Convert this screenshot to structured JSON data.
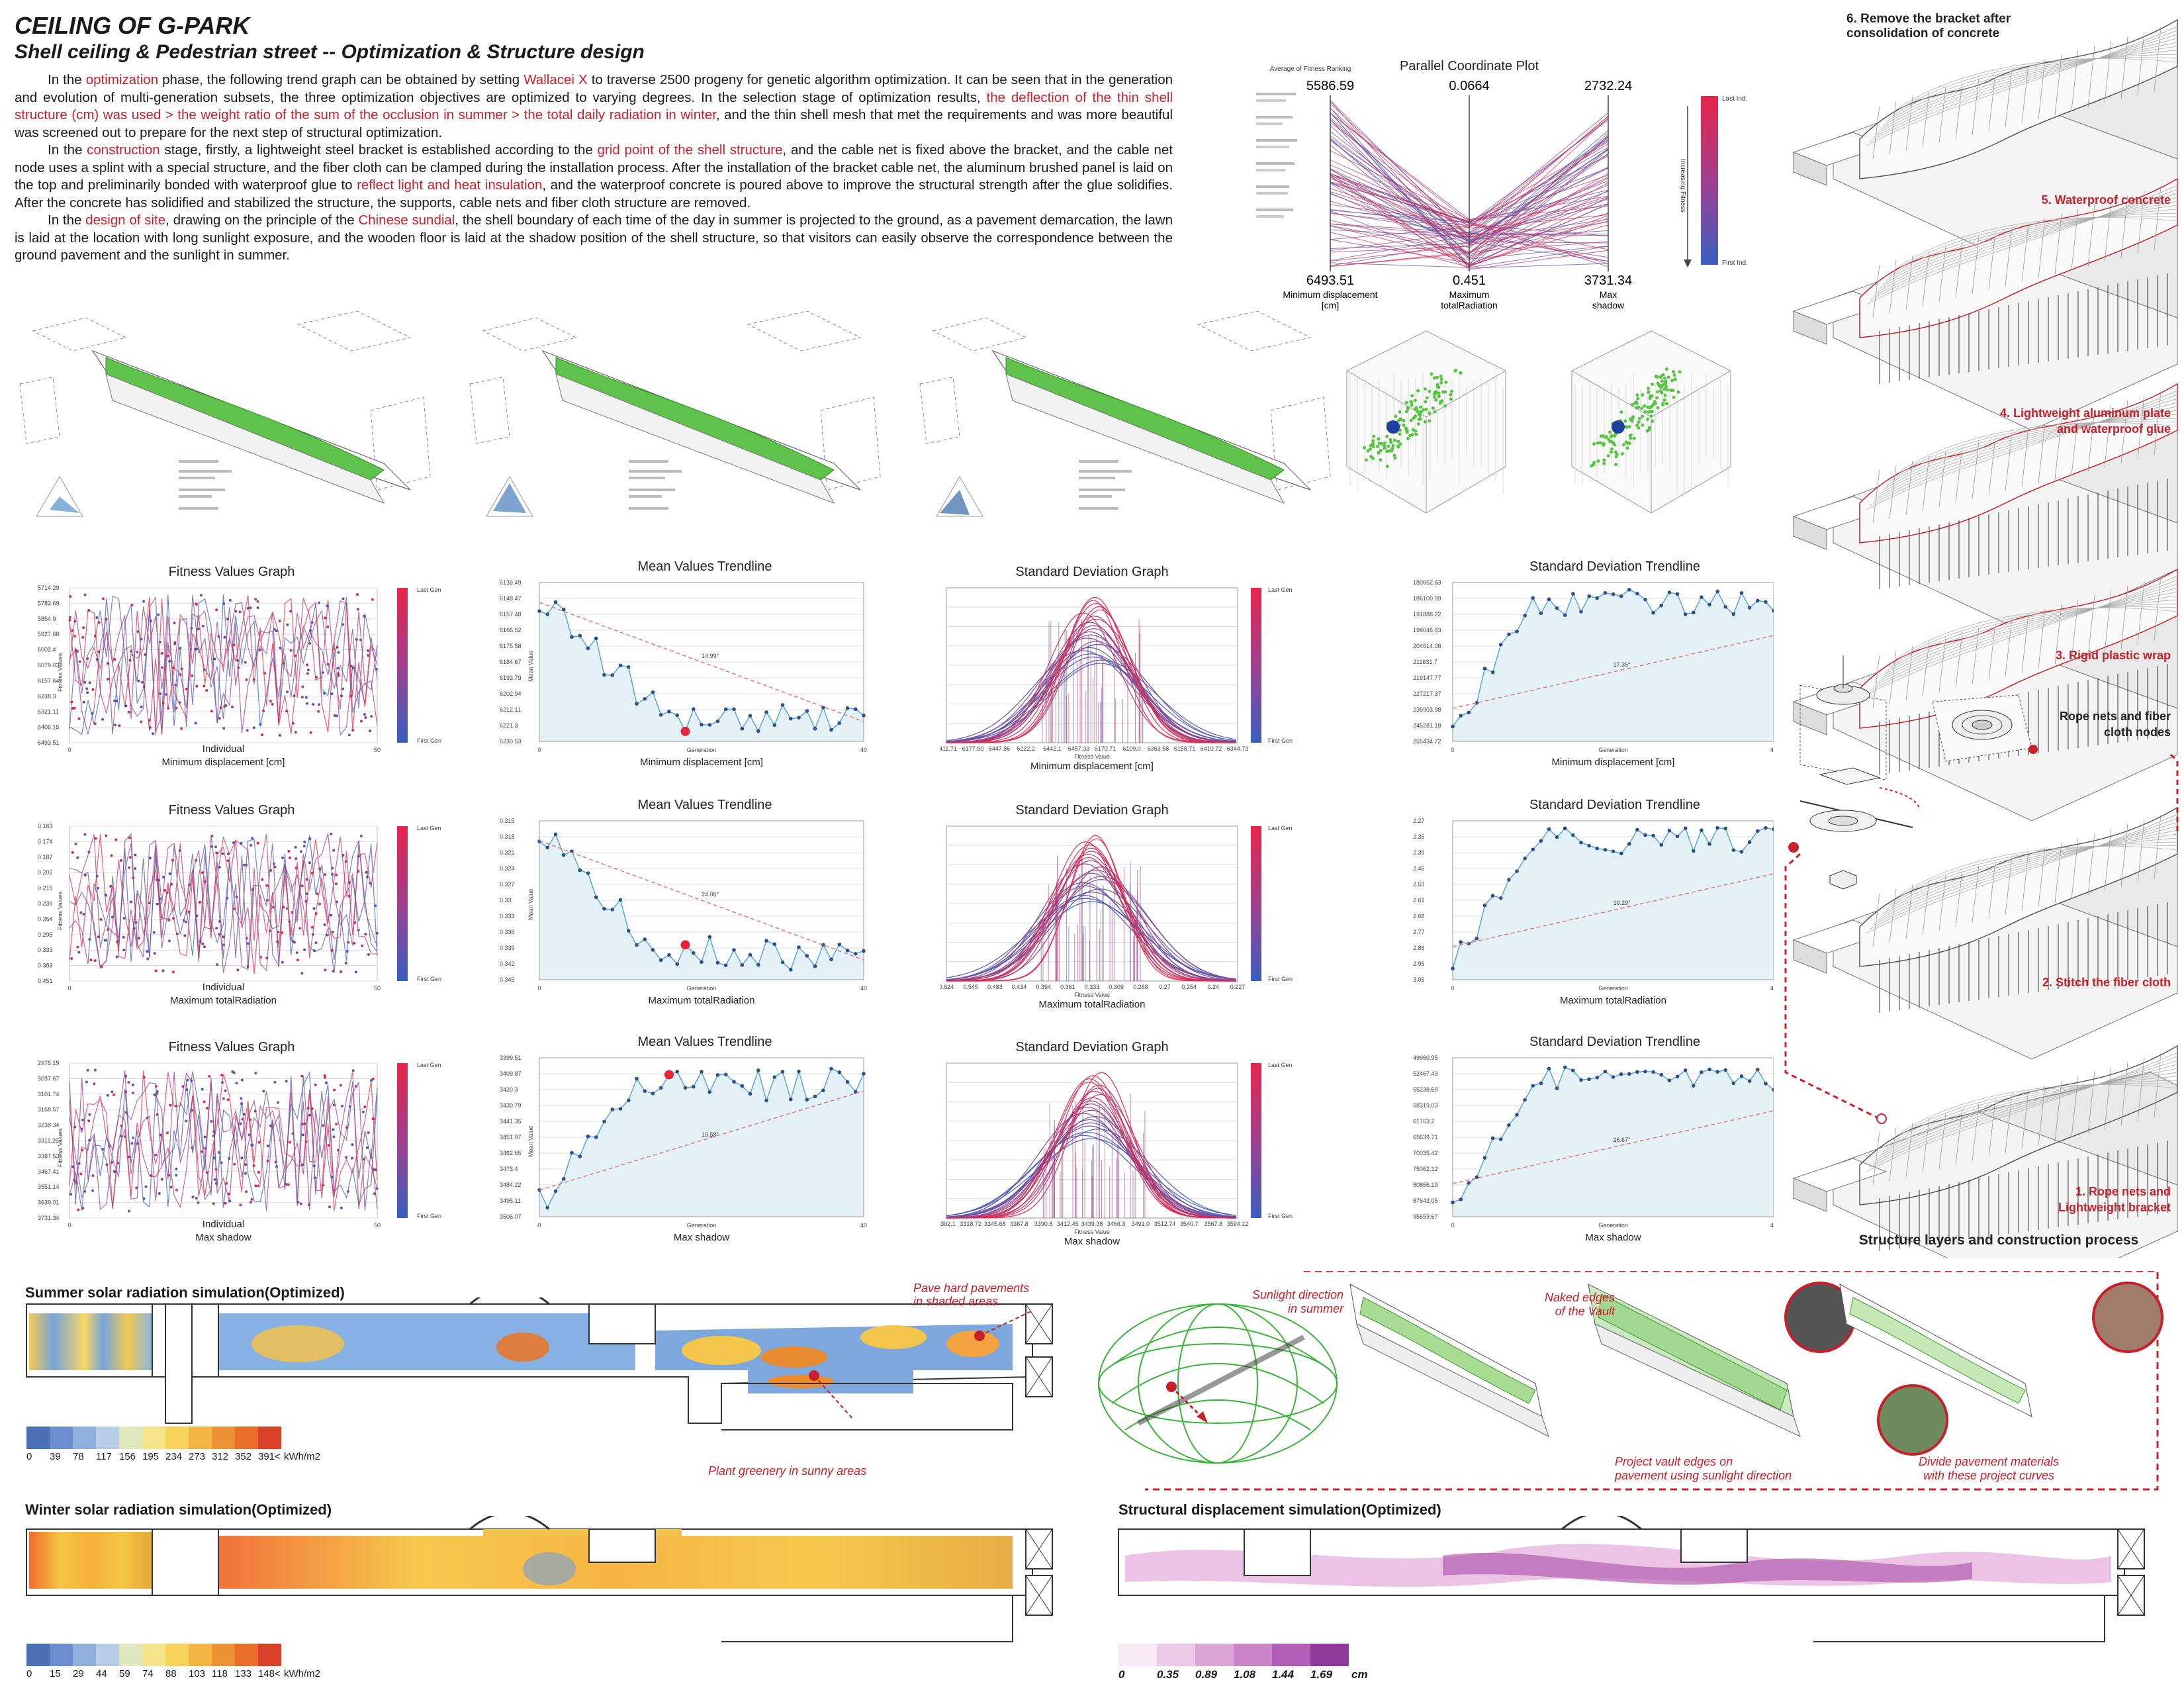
{
  "header": {
    "title": "CEILING OF G-PARK",
    "subtitle": "Shell ceiling & Pedestrian street -- Optimization & Structure design"
  },
  "body_text": {
    "p1": [
      {
        "t": "In the ",
        "h": false
      },
      {
        "t": "optimization",
        "h": true
      },
      {
        "t": " phase, the following trend graph can be obtained by setting ",
        "h": false
      },
      {
        "t": "Wallacei X",
        "h": true
      },
      {
        "t": " to traverse 2500 progeny for genetic algorithm optimization. It can be seen that in the generation and evolution of multi-generation subsets, the three optimization objectives are optimized to varying degrees. In the selection stage of optimization results, ",
        "h": false
      },
      {
        "t": "the deflection of the thin shell structure (cm) was used > the weight ratio of the sum of the occlusion in summer > the total daily radiation in winter",
        "h": true
      },
      {
        "t": ", and the thin shell mesh that met the requirements and was more beautiful was screened out to prepare for the next step of structural optimization.",
        "h": false
      }
    ],
    "p2": [
      {
        "t": "In the ",
        "h": false
      },
      {
        "t": "construction",
        "h": true
      },
      {
        "t": " stage, firstly, a lightweight steel bracket is established according to the ",
        "h": false
      },
      {
        "t": "grid point of the shell structure",
        "h": true
      },
      {
        "t": ", and the cable net is fixed above the bracket, and the cable net node uses a splint with a special structure, and the fiber cloth can be clamped during the installation process. After the installation of the bracket cable net, the aluminum brushed panel is laid on the top and preliminarily bonded with waterproof glue to ",
        "h": false
      },
      {
        "t": "reflect light and heat insulation",
        "h": true
      },
      {
        "t": ", and the waterproof concrete is poured above to improve the structural strength after the glue solidifies. After the concrete has solidified and stabilized the structure, the supports, cable nets and fiber cloth structure are removed.",
        "h": false
      }
    ],
    "p3": [
      {
        "t": "In the ",
        "h": false
      },
      {
        "t": "design of site",
        "h": true
      },
      {
        "t": ", drawing on the principle of the ",
        "h": false
      },
      {
        "t": "Chinese sundial",
        "h": true
      },
      {
        "t": ", the shell boundary of each time of the day in summer is projected to the ground, as a pavement demarcation, the lawn is laid at the location with long sunlight exposure, and the wooden floor is laid at the shadow position of the shell structure, so that visitors can easily observe the correspondence between the ground pavement and the sunlight in summer.",
        "h": false
      }
    ]
  },
  "parallel_plot": {
    "title": "Parallel Coordinate Plot",
    "caption": "Average of Fitness Ranking",
    "top_values": [
      "5586.59",
      "0.0664",
      "2732.24"
    ],
    "bottom_values": [
      "6493.51",
      "0.451",
      "3731.34"
    ],
    "axis_labels": [
      [
        "Minimum displacement",
        "[cm]"
      ],
      [
        "Maximum",
        "totalRadiation"
      ],
      [
        "Max",
        "shadow"
      ]
    ],
    "legend_top": "Last Ind.",
    "legend_bottom": "First Ind.",
    "legend_mid": "Increasing Fitness"
  },
  "charts": {
    "fitness_title": "Fitness Values Graph",
    "mean_title": "Mean Values Trendline",
    "sd_graph_title": "Standard Deviation Graph",
    "sd_trend_title": "Standard Deviation Trendline",
    "fitness_ylabel": "Fitness Values",
    "fitness_xlabel": "Individual",
    "mean_ylabel": "Mean Value",
    "gen_xlabel": "Generation",
    "sd_xlabel": "Fitness Value",
    "sd_ylabel": "Standard Deviation Factor",
    "last_gen": "Last Gen",
    "first_gen": "First Gen",
    "fitness_x0": "0",
    "fitness_x1": "50",
    "gen_x0": "0",
    "gen_x1": "40",
    "rows": [
      {
        "objective": "Minimum displacement [cm]",
        "fitness_ticks": [
          "5714.29",
          "5783.69",
          "5854.9",
          "5927.68",
          "6002.4",
          "6079.03",
          "6157.64",
          "6238.3",
          "6321.11",
          "6406.15",
          "6493.51"
        ],
        "mean_ticks": [
          "6139.49",
          "6148.47",
          "6157.48",
          "6166.52",
          "6175.58",
          "6184.67",
          "6193.79",
          "6202.94",
          "6212.11",
          "6221.3",
          "6230.53"
        ],
        "mean_slope": "14.99°",
        "sd_ticks": [
          "6411.71",
          "6177.60",
          "6447.86",
          "6222.2",
          "6442.1",
          "6457.33",
          "6170.71",
          "6109.0",
          "6363.58",
          "6158.71",
          "6410.72",
          "6344.73"
        ],
        "sdt_ticks": [
          "180652.63",
          "186100.99",
          "191888.22",
          "198046.93",
          "204614.08",
          "211631.7",
          "219147.77",
          "227217.37",
          "235903.98",
          "245281.18",
          "255434.72"
        ],
        "sdt_slope": "17.36°"
      },
      {
        "objective": "Maximum totalRadiation",
        "fitness_ticks": [
          "0.163",
          "0.174",
          "0.187",
          "0.202",
          "0.219",
          "0.239",
          "0.264",
          "0.295",
          "0.333",
          "0.383",
          "0.451"
        ],
        "mean_ticks": [
          "0.315",
          "0.318",
          "0.321",
          "0.324",
          "0.327",
          "0.33",
          "0.333",
          "0.336",
          "0.339",
          "0.342",
          "0.345"
        ],
        "mean_slope": "24.06°",
        "sd_ticks": [
          "0.624",
          "0.545",
          "0.483",
          "0.434",
          "0.394",
          "0.361",
          "0.333",
          "0.309",
          "0.288",
          "0.27",
          "0.254",
          "0.24",
          "0.227"
        ],
        "sdt_ticks": [
          "2.27",
          "2.35",
          "2.39",
          "2.46",
          "2.53",
          "2.61",
          "2.68",
          "2.77",
          "2.86",
          "2.95",
          "3.05"
        ],
        "sdt_slope": "19.29°"
      },
      {
        "objective": "Max shadow",
        "fitness_ticks": [
          "2976.19",
          "3037.67",
          "3101.74",
          "3168.57",
          "3238.34",
          "3311.26",
          "3387.53",
          "3467.41",
          "3551.14",
          "3639.01",
          "3731.34"
        ],
        "mean_ticks": [
          "3399.51",
          "3409.87",
          "3420.3",
          "3430.79",
          "3441.35",
          "3451.97",
          "3462.65",
          "3473.4",
          "3484.22",
          "3495.11",
          "3506.07"
        ],
        "mean_slope": "19.58°",
        "sd_ticks": [
          "3302.1",
          "3318.72",
          "3345.68",
          "3367.8",
          "3390.8",
          "3412.45",
          "3439.38",
          "3466.3",
          "3491.0",
          "3512.74",
          "3540.7",
          "3567.8",
          "3594.12"
        ],
        "sdt_ticks": [
          "49960.95",
          "52467.43",
          "55238.69",
          "58319.03",
          "61763.2",
          "65639.71",
          "70035.42",
          "75062.12",
          "80866.19",
          "87643.05",
          "95659.67"
        ],
        "sdt_slope": "26.67°"
      }
    ]
  },
  "structure": {
    "title": "Structure layers and construction process",
    "steps": [
      "6. Remove the bracket after consolidation of concrete",
      "5. Waterproof concrete",
      "4. Lightweight aluminum plate and waterproof glue",
      "3. Rigid plastic wrap",
      "2. Stitch the fiber cloth",
      "1. Rope nets and Lightweight bracket"
    ],
    "node_label": "Rope nets and fiber cloth nodes"
  },
  "simulations": {
    "summer_title": "Summer solar radiation simulation(Optimized)",
    "summer_legend": [
      "0",
      "39",
      "78",
      "117",
      "156",
      "195",
      "234",
      "273",
      "312",
      "352",
      "391<"
    ],
    "summer_unit": "kWh/m2",
    "winter_title": "Winter solar radiation simulation(Optimized)",
    "winter_legend": [
      "0",
      "15",
      "29",
      "44",
      "59",
      "74",
      "88",
      "103",
      "118",
      "133",
      "148<"
    ],
    "winter_unit": "kWh/m2",
    "disp_title": "Structural  displacement simulation(Optimized)",
    "disp_legend": [
      "0",
      "0.35",
      "0.89",
      "1.08",
      "1.44",
      "1.69"
    ],
    "disp_unit": "cm",
    "ann_pave": [
      "Pave hard pavements",
      "in shaded areas"
    ],
    "ann_plant": "Plant greenery in sunny areas",
    "ann_sun": [
      "Sunlight direction",
      "in summer"
    ],
    "ann_edges": [
      "Naked edges",
      "of the Vault"
    ],
    "ann_project": [
      "Project vault edges on",
      "pavement using sunlight direction"
    ],
    "ann_divide": [
      "Divide pavement materials",
      "with these project curves"
    ]
  },
  "colors": {
    "accent_red": "#c8202a",
    "gen_blue": "#3b5bb5",
    "gen_red": "#e0304a",
    "green_shell": "#5fc24a",
    "trend_fill": "#e4f2f7"
  }
}
